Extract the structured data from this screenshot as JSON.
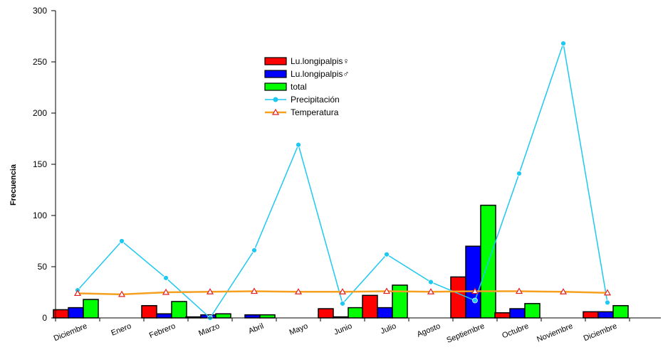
{
  "chart_data": {
    "type": "bar",
    "title": "",
    "xlabel": "",
    "ylabel": "Frecuencia",
    "ylim": [
      0,
      300
    ],
    "yticks": [
      0,
      50,
      100,
      150,
      200,
      250,
      300
    ],
    "grid": false,
    "legend_position": "top-center",
    "categories": [
      "Diciembre",
      "Enero",
      "Febrero",
      "Marzo",
      "Abril",
      "Mayo",
      "Junio",
      "Julio",
      "Agosto",
      "Septiembre",
      "Octubre",
      "Noviembre",
      "Diciembre"
    ],
    "series": [
      {
        "name": "Lu.longipalpis♀",
        "kind": "bar",
        "color": "#ff0000",
        "values": [
          8,
          0,
          12,
          1,
          0,
          0,
          9,
          22,
          0,
          40,
          5,
          0,
          6
        ]
      },
      {
        "name": "Lu.longipalpis♂",
        "kind": "bar",
        "color": "#0000ff",
        "values": [
          10,
          0,
          4,
          3,
          3,
          0,
          1,
          10,
          0,
          70,
          9,
          0,
          6
        ]
      },
      {
        "name": "total",
        "kind": "bar",
        "color": "#00ff00",
        "values": [
          18,
          0,
          16,
          4,
          3,
          0,
          10,
          32,
          0,
          110,
          14,
          0,
          12
        ]
      },
      {
        "name": "Precipitación",
        "kind": "line",
        "color": "#1ec8f0",
        "marker": "circle",
        "values": [
          27,
          75,
          39,
          0,
          66,
          169,
          14,
          62,
          35,
          17,
          141,
          268,
          15
        ]
      },
      {
        "name": "Temperatura",
        "kind": "line",
        "color": "#f5a020",
        "marker": "triangle",
        "values": [
          24,
          23,
          25,
          25.5,
          26,
          25.5,
          25.5,
          26,
          25.5,
          26,
          26,
          25.5,
          24.5
        ]
      }
    ]
  }
}
